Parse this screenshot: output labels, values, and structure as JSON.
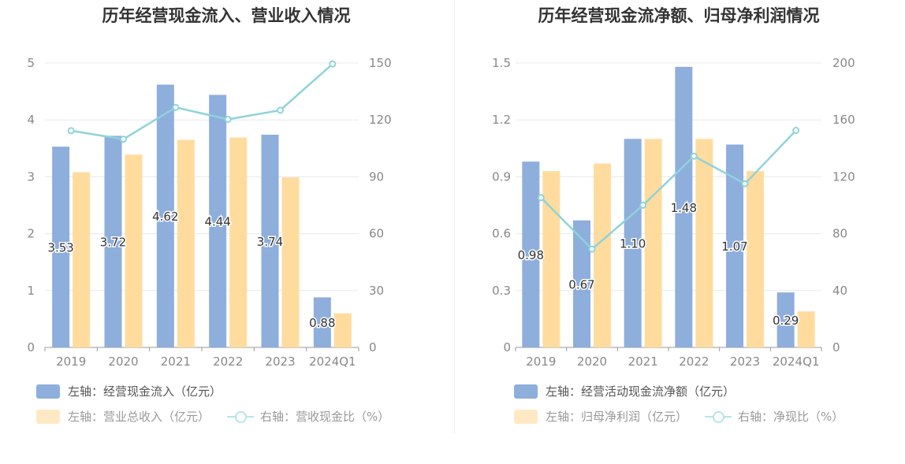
{
  "chart_data": [
    {
      "type": "bar",
      "title": "历年经营现金流入、营业收入情况",
      "categories": [
        "2019",
        "2020",
        "2021",
        "2022",
        "2023",
        "2024Q1"
      ],
      "series": [
        {
          "name": "左轴：经营现金流入（亿元）",
          "axis": "left",
          "color": "#8eaedc",
          "values": [
            3.53,
            3.72,
            4.62,
            4.44,
            3.74,
            0.88
          ],
          "labels": [
            "3.53",
            "3.72",
            "4.62",
            "4.44",
            "3.74",
            "0.88"
          ]
        },
        {
          "name": "左轴：营业总收入（亿元）",
          "axis": "left",
          "color": "#ffdc9e",
          "values": [
            3.08,
            3.39,
            3.65,
            3.69,
            2.99,
            0.6
          ]
        },
        {
          "name": "右轴：营收现金比（%）",
          "axis": "right",
          "type": "line",
          "color": "#8fd3da",
          "values": [
            114.3,
            109.8,
            126.6,
            120.3,
            125.1,
            149.5
          ]
        }
      ],
      "yleft": {
        "min": 0,
        "max": 5,
        "ticks": [
          "0",
          "1",
          "2",
          "3",
          "4",
          "5"
        ]
      },
      "yright": {
        "min": 0,
        "max": 150,
        "ticks": [
          "0",
          "30",
          "60",
          "90",
          "120",
          "150"
        ]
      },
      "grid": true,
      "legend": "bottom"
    },
    {
      "type": "bar",
      "title": "历年经营现金流净额、归母净利润情况",
      "categories": [
        "2019",
        "2020",
        "2021",
        "2022",
        "2023",
        "2024Q1"
      ],
      "series": [
        {
          "name": "左轴：经营活动现金流净额（亿元）",
          "axis": "left",
          "color": "#8eaedc",
          "values": [
            0.98,
            0.67,
            1.1,
            1.48,
            1.07,
            0.29
          ],
          "labels": [
            "0.98",
            "0.67",
            "1.10",
            "1.48",
            "1.07",
            "0.29"
          ]
        },
        {
          "name": "左轴：归母净利润（亿元）",
          "axis": "left",
          "color": "#ffdc9e",
          "values": [
            0.93,
            0.97,
            1.1,
            1.1,
            0.93,
            0.19
          ]
        },
        {
          "name": "右轴：净现比（%）",
          "axis": "right",
          "type": "line",
          "color": "#8fd3da",
          "values": [
            105.3,
            69.1,
            100.0,
            134.5,
            115.1,
            152.6
          ]
        }
      ],
      "yleft": {
        "min": 0,
        "max": 1.5,
        "ticks": [
          "0",
          "0.3",
          "0.6",
          "0.9",
          "1.2",
          "1.5"
        ]
      },
      "yright": {
        "min": 0,
        "max": 200,
        "ticks": [
          "0",
          "40",
          "80",
          "120",
          "160",
          "200"
        ]
      },
      "grid": true,
      "legend": "bottom"
    }
  ]
}
